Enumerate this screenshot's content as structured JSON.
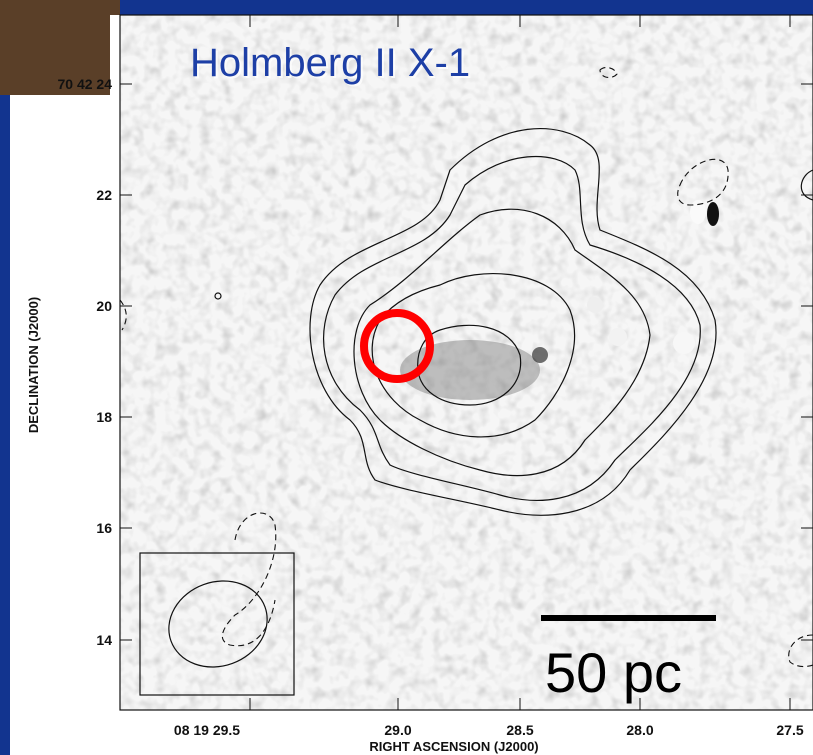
{
  "figure": {
    "title": "Holmberg II X-1",
    "scale_bar": "50 pc",
    "x_axis": {
      "label": "RIGHT ASCENSION (J2000)",
      "ticks": [
        "08 19 29.5",
        "29.0",
        "28.5",
        "28.0",
        "27.5"
      ]
    },
    "y_axis": {
      "label": "DECLINATION (J2000)",
      "ticks": [
        "70 42 24",
        "22",
        "20",
        "18",
        "16",
        "14"
      ]
    }
  }
}
